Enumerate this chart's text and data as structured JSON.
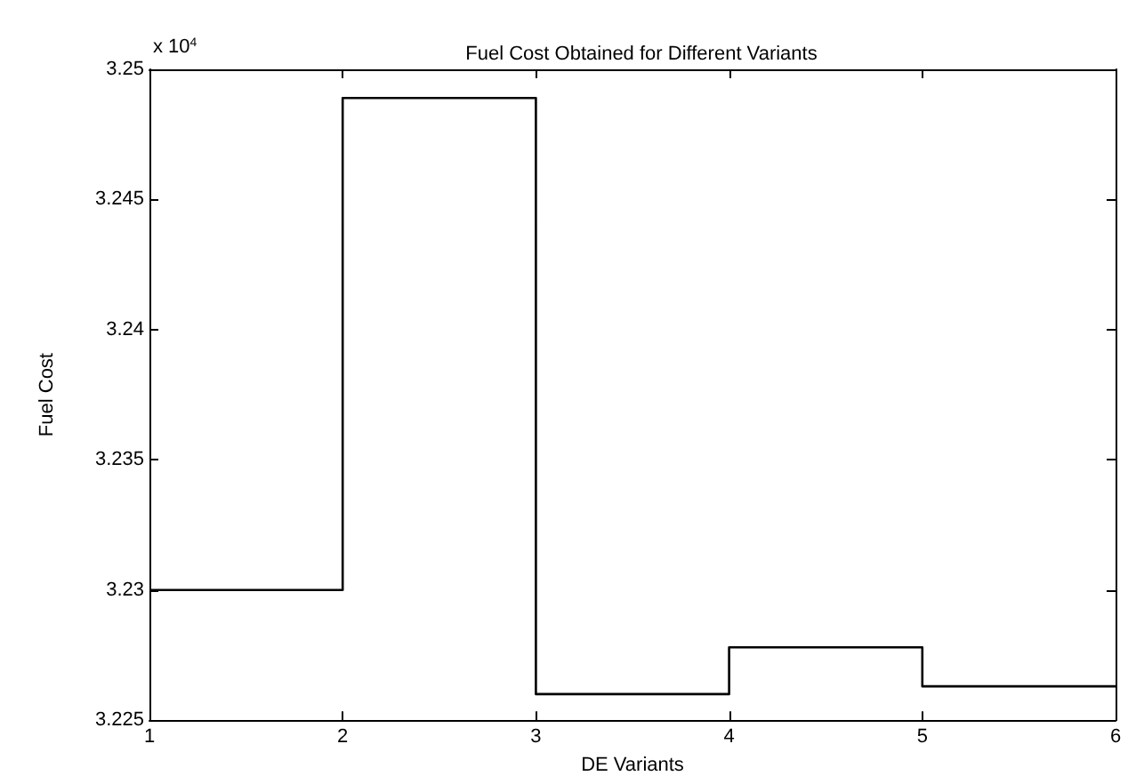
{
  "chart_data": {
    "type": "step",
    "title": "Fuel Cost Obtained for Different Variants",
    "xlabel": "DE Variants",
    "ylabel": "Fuel Cost",
    "annotations": [
      "x 10$^{4}$"
    ],
    "x": [
      1,
      2,
      3,
      4,
      5,
      6
    ],
    "series": [
      {
        "color": "#000000",
        "values": [
          3.23,
          3.2489,
          3.226,
          3.2278,
          3.2263,
          3.2263
        ]
      }
    ],
    "xlim": [
      1,
      6
    ],
    "xticks": [
      1,
      2,
      3,
      4,
      5,
      6
    ],
    "ylim": [
      3.225,
      3.25
    ],
    "yticks": [
      3.225,
      3.23,
      3.235,
      3.24,
      3.245,
      3.25
    ],
    "grid": false,
    "marker": "none",
    "line_style": "solid"
  }
}
